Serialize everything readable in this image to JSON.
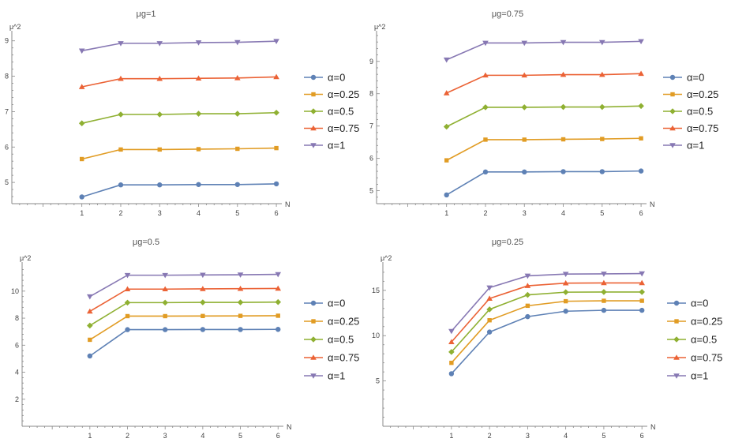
{
  "chart_data": [
    {
      "type": "line",
      "title": "μg=1",
      "xlabel": "N",
      "ylabel": "μ^2",
      "x": [
        1,
        2,
        3,
        4,
        5,
        6
      ],
      "xticks": [
        "1",
        "2",
        "3",
        "4",
        "5",
        "6"
      ],
      "xlim": [
        -0.8,
        6.1
      ],
      "ylim": [
        4.4,
        9.15
      ],
      "yticks": [
        "5",
        "6",
        "7",
        "8",
        "9"
      ],
      "ytick_values": [
        5,
        6,
        7,
        8,
        9
      ],
      "series": [
        {
          "name": "α=0",
          "values": [
            4.59,
            4.93,
            4.93,
            4.94,
            4.94,
            4.96
          ]
        },
        {
          "name": "α=0.25",
          "values": [
            5.66,
            5.93,
            5.93,
            5.94,
            5.95,
            5.97
          ]
        },
        {
          "name": "α=0.5",
          "values": [
            6.67,
            6.92,
            6.92,
            6.94,
            6.94,
            6.97
          ]
        },
        {
          "name": "α=0.75",
          "values": [
            7.7,
            7.93,
            7.93,
            7.94,
            7.95,
            7.98
          ]
        },
        {
          "name": "α=1",
          "values": [
            8.72,
            8.93,
            8.93,
            8.95,
            8.96,
            8.99
          ]
        }
      ]
    },
    {
      "type": "line",
      "title": "μg=0.75",
      "xlabel": "N",
      "ylabel": "μ^2",
      "x": [
        1,
        2,
        3,
        4,
        5,
        6
      ],
      "xticks": [
        "1",
        "2",
        "3",
        "4",
        "5",
        "6"
      ],
      "xlim": [
        -0.8,
        6.1
      ],
      "ylim": [
        4.6,
        9.8
      ],
      "yticks": [
        "5",
        "6",
        "7",
        "8",
        "9"
      ],
      "ytick_values": [
        5,
        6,
        7,
        8,
        9
      ],
      "series": [
        {
          "name": "α=0",
          "values": [
            4.87,
            5.58,
            5.58,
            5.59,
            5.59,
            5.61
          ]
        },
        {
          "name": "α=0.25",
          "values": [
            5.94,
            6.58,
            6.58,
            6.59,
            6.6,
            6.62
          ]
        },
        {
          "name": "α=0.5",
          "values": [
            6.98,
            7.58,
            7.58,
            7.59,
            7.59,
            7.62
          ]
        },
        {
          "name": "α=0.75",
          "values": [
            8.02,
            8.57,
            8.57,
            8.59,
            8.59,
            8.62
          ]
        },
        {
          "name": "α=1",
          "values": [
            9.05,
            9.57,
            9.57,
            9.59,
            9.59,
            9.62
          ]
        }
      ]
    },
    {
      "type": "line",
      "title": "μg=0.5",
      "xlabel": "N",
      "ylabel": "μ^2",
      "x": [
        1,
        2,
        3,
        4,
        5,
        6
      ],
      "xticks": [
        "1",
        "2",
        "3",
        "4",
        "5",
        "6"
      ],
      "xlim": [
        -0.8,
        6.1
      ],
      "ylim": [
        0,
        11.8
      ],
      "yticks": [
        "2",
        "4",
        "6",
        "8",
        "10"
      ],
      "ytick_values": [
        2,
        4,
        6,
        8,
        10
      ],
      "series": [
        {
          "name": "α=0",
          "values": [
            5.2,
            7.15,
            7.15,
            7.16,
            7.16,
            7.17
          ]
        },
        {
          "name": "α=0.25",
          "values": [
            6.4,
            8.15,
            8.15,
            8.16,
            8.17,
            8.18
          ]
        },
        {
          "name": "α=0.5",
          "values": [
            7.45,
            9.15,
            9.15,
            9.17,
            9.17,
            9.19
          ]
        },
        {
          "name": "α=0.75",
          "values": [
            8.5,
            10.15,
            10.15,
            10.17,
            10.18,
            10.2
          ]
        },
        {
          "name": "α=1",
          "values": [
            9.6,
            11.18,
            11.18,
            11.2,
            11.21,
            11.24
          ]
        }
      ]
    },
    {
      "type": "line",
      "title": "μg=0.25",
      "xlabel": "N",
      "ylabel": "μ^2",
      "x": [
        1,
        2,
        3,
        4,
        5,
        6
      ],
      "xticks": [
        "1",
        "2",
        "3",
        "4",
        "5",
        "6"
      ],
      "xlim": [
        -0.8,
        6.1
      ],
      "ylim": [
        0,
        17.6
      ],
      "yticks": [
        "5",
        "10",
        "15"
      ],
      "ytick_values": [
        5,
        10,
        15
      ],
      "series": [
        {
          "name": "α=0",
          "values": [
            5.8,
            10.4,
            12.1,
            12.7,
            12.8,
            12.8
          ]
        },
        {
          "name": "α=0.25",
          "values": [
            7.0,
            11.7,
            13.3,
            13.8,
            13.85,
            13.85
          ]
        },
        {
          "name": "α=0.5",
          "values": [
            8.2,
            12.9,
            14.5,
            14.8,
            14.82,
            14.82
          ]
        },
        {
          "name": "α=0.75",
          "values": [
            9.3,
            14.1,
            15.5,
            15.8,
            15.82,
            15.82
          ]
        },
        {
          "name": "α=1",
          "values": [
            10.5,
            15.3,
            16.6,
            16.8,
            16.82,
            16.85
          ]
        }
      ]
    }
  ],
  "series_colors": [
    "#5e81b5",
    "#e19c24",
    "#8fb032",
    "#eb6235",
    "#8778b3"
  ],
  "series_markers": [
    "circle",
    "square",
    "diamond",
    "triangle-up",
    "triangle-down"
  ]
}
